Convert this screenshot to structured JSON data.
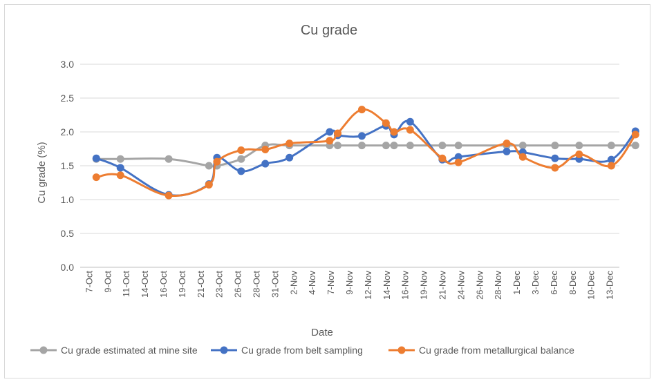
{
  "chart_data": {
    "type": "line",
    "title": "Cu grade",
    "xlabel": "Date",
    "ylabel": "Cu grade (%)",
    "ylim": [
      0,
      3.0
    ],
    "yticks": [
      "0.0",
      "0.5",
      "1.0",
      "1.5",
      "2.0",
      "2.5",
      "3.0"
    ],
    "x_axis_start": "7-Oct",
    "x_axis_end": "13-Dec",
    "x_tick_labels": [
      "7-Oct",
      "9-Oct",
      "11-Oct",
      "14-Oct",
      "16-Oct",
      "19-Oct",
      "21-Oct",
      "23-Oct",
      "26-Oct",
      "28-Oct",
      "31-Oct",
      "2-Nov",
      "4-Nov",
      "7-Nov",
      "9-Nov",
      "12-Nov",
      "14-Nov",
      "16-Nov",
      "19-Nov",
      "21-Nov",
      "24-Nov",
      "26-Nov",
      "28-Nov",
      "1-Dec",
      "3-Dec",
      "6-Dec",
      "8-Dec",
      "10-Dec",
      "13-Dec"
    ],
    "grid": true,
    "legend": "bottom",
    "series": [
      {
        "name": "Cu grade estimated at mine site",
        "color": "#a5a5a5",
        "points": [
          {
            "x": "9-Oct",
            "y": 1.6
          },
          {
            "x": "12-Oct",
            "y": 1.6
          },
          {
            "x": "18-Oct",
            "y": 1.6
          },
          {
            "x": "23-Oct",
            "y": 1.5
          },
          {
            "x": "24-Oct",
            "y": 1.5
          },
          {
            "x": "27-Oct",
            "y": 1.6
          },
          {
            "x": "30-Oct",
            "y": 1.8
          },
          {
            "x": "2-Nov",
            "y": 1.8
          },
          {
            "x": "7-Nov",
            "y": 1.8
          },
          {
            "x": "8-Nov",
            "y": 1.8
          },
          {
            "x": "11-Nov",
            "y": 1.8
          },
          {
            "x": "14-Nov",
            "y": 1.8
          },
          {
            "x": "15-Nov",
            "y": 1.8
          },
          {
            "x": "17-Nov",
            "y": 1.8
          },
          {
            "x": "21-Nov",
            "y": 1.8
          },
          {
            "x": "23-Nov",
            "y": 1.8
          },
          {
            "x": "29-Nov",
            "y": 1.8
          },
          {
            "x": "1-Dec",
            "y": 1.8
          },
          {
            "x": "5-Dec",
            "y": 1.8
          },
          {
            "x": "8-Dec",
            "y": 1.8
          },
          {
            "x": "12-Dec",
            "y": 1.8
          },
          {
            "x": "15-Dec",
            "y": 1.8
          }
        ]
      },
      {
        "name": "Cu grade from belt sampling",
        "color": "#4472c4",
        "points": [
          {
            "x": "9-Oct",
            "y": 1.61
          },
          {
            "x": "12-Oct",
            "y": 1.47
          },
          {
            "x": "18-Oct",
            "y": 1.07
          },
          {
            "x": "23-Oct",
            "y": 1.23
          },
          {
            "x": "24-Oct",
            "y": 1.62
          },
          {
            "x": "27-Oct",
            "y": 1.42
          },
          {
            "x": "30-Oct",
            "y": 1.53
          },
          {
            "x": "2-Nov",
            "y": 1.62
          },
          {
            "x": "7-Nov",
            "y": 2.0
          },
          {
            "x": "8-Nov",
            "y": 1.95
          },
          {
            "x": "11-Nov",
            "y": 1.94
          },
          {
            "x": "14-Nov",
            "y": 2.09
          },
          {
            "x": "15-Nov",
            "y": 1.96
          },
          {
            "x": "17-Nov",
            "y": 2.15
          },
          {
            "x": "21-Nov",
            "y": 1.59
          },
          {
            "x": "23-Nov",
            "y": 1.63
          },
          {
            "x": "29-Nov",
            "y": 1.71
          },
          {
            "x": "1-Dec",
            "y": 1.7
          },
          {
            "x": "5-Dec",
            "y": 1.61
          },
          {
            "x": "8-Dec",
            "y": 1.6
          },
          {
            "x": "12-Dec",
            "y": 1.59
          },
          {
            "x": "15-Dec",
            "y": 2.01
          }
        ]
      },
      {
        "name": "Cu grade from metallurgical balance",
        "color": "#ed7d31",
        "points": [
          {
            "x": "9-Oct",
            "y": 1.33
          },
          {
            "x": "12-Oct",
            "y": 1.36
          },
          {
            "x": "18-Oct",
            "y": 1.06
          },
          {
            "x": "23-Oct",
            "y": 1.22
          },
          {
            "x": "24-Oct",
            "y": 1.56
          },
          {
            "x": "27-Oct",
            "y": 1.73
          },
          {
            "x": "30-Oct",
            "y": 1.74
          },
          {
            "x": "2-Nov",
            "y": 1.83
          },
          {
            "x": "7-Nov",
            "y": 1.87
          },
          {
            "x": "8-Nov",
            "y": 1.98
          },
          {
            "x": "11-Nov",
            "y": 2.33
          },
          {
            "x": "14-Nov",
            "y": 2.13
          },
          {
            "x": "15-Nov",
            "y": 2.0
          },
          {
            "x": "17-Nov",
            "y": 2.03
          },
          {
            "x": "21-Nov",
            "y": 1.61
          },
          {
            "x": "23-Nov",
            "y": 1.55
          },
          {
            "x": "29-Nov",
            "y": 1.83
          },
          {
            "x": "1-Dec",
            "y": 1.63
          },
          {
            "x": "5-Dec",
            "y": 1.47
          },
          {
            "x": "8-Dec",
            "y": 1.67
          },
          {
            "x": "12-Dec",
            "y": 1.5
          },
          {
            "x": "15-Dec",
            "y": 1.96
          }
        ]
      }
    ]
  }
}
